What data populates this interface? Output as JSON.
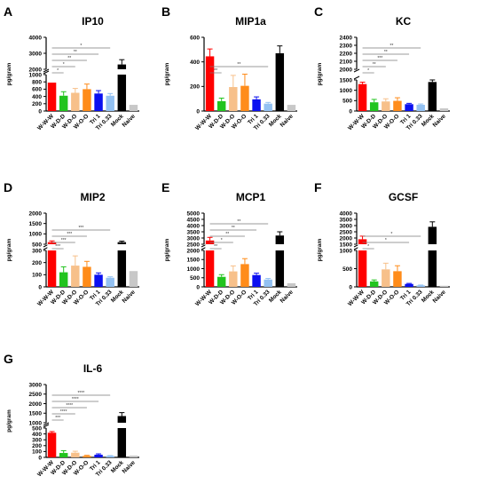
{
  "figure": {
    "yunit": "pg/gram",
    "categories": [
      "W-W-W",
      "W-D-D",
      "W-D-O",
      "W-O-O",
      "Tri 1",
      "Tri 0.33",
      "Mock",
      "Naive"
    ]
  },
  "colors": {
    "W-W-W": "#ff0000",
    "W-D-D": "#22c41e",
    "W-D-O": "#f7c08a",
    "W-O-O": "#ff8c1a",
    "Tri 1": "#0b10f0",
    "Tri 0.33": "#93c1f2",
    "Mock": "#000000",
    "Naive": "#c8c8c8"
  },
  "chart_data": [
    {
      "type": "bar",
      "panel": "A",
      "title": "IP10",
      "ylabel": "pg/gram",
      "categories": [
        "W-W-W",
        "W-D-D",
        "W-D-O",
        "W-O-O",
        "Tri 1",
        "Tri 0.33",
        "Mock",
        "Naive"
      ],
      "values": [
        780,
        420,
        500,
        600,
        480,
        420,
        2300,
        170
      ],
      "errors": [
        0,
        110,
        120,
        140,
        80,
        60,
        300,
        0
      ],
      "segments": [
        {
          "range": [
            0,
            1000
          ],
          "ticks": [
            0,
            200,
            400,
            600,
            800,
            1000
          ]
        },
        {
          "range": [
            2000,
            4000
          ],
          "ticks": [
            2000,
            3000,
            4000
          ]
        }
      ],
      "sig": [
        {
          "from": 0,
          "to": 1,
          "label": "*"
        },
        {
          "from": 0,
          "to": 2,
          "label": "*"
        },
        {
          "from": 0,
          "to": 3,
          "label": "**"
        },
        {
          "from": 0,
          "to": 4,
          "label": "**"
        },
        {
          "from": 0,
          "to": 5,
          "label": "*"
        }
      ]
    },
    {
      "type": "bar",
      "panel": "B",
      "title": "MIP1a",
      "ylabel": "pg/gram",
      "categories": [
        "W-W-W",
        "W-D-D",
        "W-D-O",
        "W-O-O",
        "Tri 1",
        "Tri 0.33",
        "Mock",
        "Naive"
      ],
      "values": [
        445,
        80,
        195,
        205,
        95,
        60,
        470,
        50
      ],
      "errors": [
        60,
        25,
        95,
        95,
        20,
        10,
        60,
        0
      ],
      "segments": [
        {
          "range": [
            0,
            600
          ],
          "ticks": [
            0,
            200,
            400,
            600
          ]
        }
      ],
      "sig": [
        {
          "from": 0,
          "to": 1,
          "label": "**"
        },
        {
          "from": 0,
          "to": 5,
          "label": "**"
        }
      ]
    },
    {
      "type": "bar",
      "panel": "C",
      "title": "KC",
      "ylabel": "pg/gram",
      "categories": [
        "W-W-W",
        "W-D-D",
        "W-D-O",
        "W-O-O",
        "Tri 1",
        "Tri 0.33",
        "Mock",
        "Naive"
      ],
      "values": [
        1300,
        420,
        460,
        490,
        330,
        300,
        1400,
        130
      ],
      "errors": [
        90,
        140,
        130,
        150,
        40,
        40,
        120,
        0
      ],
      "segments": [
        {
          "range": [
            0,
            1500
          ],
          "ticks": [
            0,
            500,
            1000,
            1500
          ]
        },
        {
          "range": [
            2000,
            2400
          ],
          "ticks": [
            2000,
            2100,
            2200,
            2300,
            2400
          ]
        }
      ],
      "sig": [
        {
          "from": 0,
          "to": 1,
          "label": "*"
        },
        {
          "from": 0,
          "to": 2,
          "label": "**"
        },
        {
          "from": 0,
          "to": 3,
          "label": "***"
        },
        {
          "from": 0,
          "to": 4,
          "label": "**"
        },
        {
          "from": 0,
          "to": 5,
          "label": "**"
        }
      ]
    },
    {
      "type": "bar",
      "panel": "D",
      "title": "MIP2",
      "ylabel": "pg/gram",
      "categories": [
        "W-W-W",
        "W-D-D",
        "W-D-O",
        "W-O-O",
        "Tri 1",
        "Tri 0.33",
        "Mock",
        "Naive"
      ],
      "values": [
        600,
        120,
        175,
        165,
        100,
        75,
        600,
        130
      ],
      "errors": [
        60,
        45,
        80,
        45,
        15,
        8,
        50,
        0
      ],
      "segments": [
        {
          "range": [
            0,
            300
          ],
          "ticks": [
            0,
            100,
            200,
            300
          ]
        },
        {
          "range": [
            500,
            2000
          ],
          "ticks": [
            500,
            1000,
            1500,
            2000
          ]
        }
      ],
      "sig": [
        {
          "from": 0,
          "to": 1,
          "label": "***"
        },
        {
          "from": 0,
          "to": 2,
          "label": "***"
        },
        {
          "from": 0,
          "to": 3,
          "label": "***"
        },
        {
          "from": 0,
          "to": 5,
          "label": "***"
        }
      ]
    },
    {
      "type": "bar",
      "panel": "E",
      "title": "MCP1",
      "ylabel": "pg/gram",
      "categories": [
        "W-W-W",
        "W-D-D",
        "W-D-O",
        "W-O-O",
        "Tri 1",
        "Tri 0.33",
        "Mock",
        "Naive"
      ],
      "values": [
        2800,
        550,
        850,
        1250,
        650,
        400,
        3200,
        200
      ],
      "errors": [
        250,
        120,
        300,
        300,
        100,
        60,
        300,
        0
      ],
      "segments": [
        {
          "range": [
            0,
            2000
          ],
          "ticks": [
            0,
            500,
            1000,
            1500,
            2000
          ]
        },
        {
          "range": [
            2500,
            5000
          ],
          "ticks": [
            2500,
            3000,
            3500,
            4000,
            4500,
            5000
          ]
        }
      ],
      "sig": [
        {
          "from": 0,
          "to": 1,
          "label": "**"
        },
        {
          "from": 0,
          "to": 2,
          "label": "*"
        },
        {
          "from": 0,
          "to": 3,
          "label": "**"
        },
        {
          "from": 0,
          "to": 4,
          "label": "**"
        },
        {
          "from": 0,
          "to": 5,
          "label": "**"
        }
      ]
    },
    {
      "type": "bar",
      "panel": "F",
      "title": "GCSF",
      "ylabel": "pg/gram",
      "categories": [
        "W-W-W",
        "W-D-D",
        "W-D-O",
        "W-O-O",
        "Tri 1",
        "Tri 0.33",
        "Mock",
        "Naive"
      ],
      "values": [
        1900,
        150,
        480,
        430,
        80,
        40,
        2900,
        30
      ],
      "errors": [
        250,
        40,
        170,
        150,
        15,
        10,
        400,
        0
      ],
      "segments": [
        {
          "range": [
            0,
            1000
          ],
          "ticks": [
            0,
            500,
            1000
          ]
        },
        {
          "range": [
            1500,
            4000
          ],
          "ticks": [
            1500,
            2000,
            2500,
            3000,
            3500,
            4000
          ]
        }
      ],
      "sig": [
        {
          "from": 0,
          "to": 1,
          "label": "*"
        },
        {
          "from": 0,
          "to": 4,
          "label": "*"
        },
        {
          "from": 0,
          "to": 5,
          "label": "*"
        }
      ]
    },
    {
      "type": "bar",
      "panel": "G",
      "title": "IL-6",
      "ylabel": "pg/gram",
      "categories": [
        "W-W-W",
        "W-D-D",
        "W-D-O",
        "W-O-O",
        "Tri 1",
        "Tri 0.33",
        "Mock",
        "Naive"
      ],
      "values": [
        420,
        75,
        80,
        25,
        45,
        25,
        1350,
        30
      ],
      "errors": [
        20,
        40,
        25,
        10,
        15,
        5,
        180,
        0
      ],
      "segments": [
        {
          "range": [
            0,
            500
          ],
          "ticks": [
            0,
            100,
            200,
            300,
            400,
            500
          ]
        },
        {
          "range": [
            1000,
            3000
          ],
          "ticks": [
            1000,
            1500,
            2000,
            2500,
            3000
          ]
        }
      ],
      "sig": [
        {
          "from": 0,
          "to": 1,
          "label": "***"
        },
        {
          "from": 0,
          "to": 2,
          "label": "****"
        },
        {
          "from": 0,
          "to": 3,
          "label": "****"
        },
        {
          "from": 0,
          "to": 4,
          "label": "****"
        },
        {
          "from": 0,
          "to": 5,
          "label": "****"
        }
      ]
    }
  ]
}
